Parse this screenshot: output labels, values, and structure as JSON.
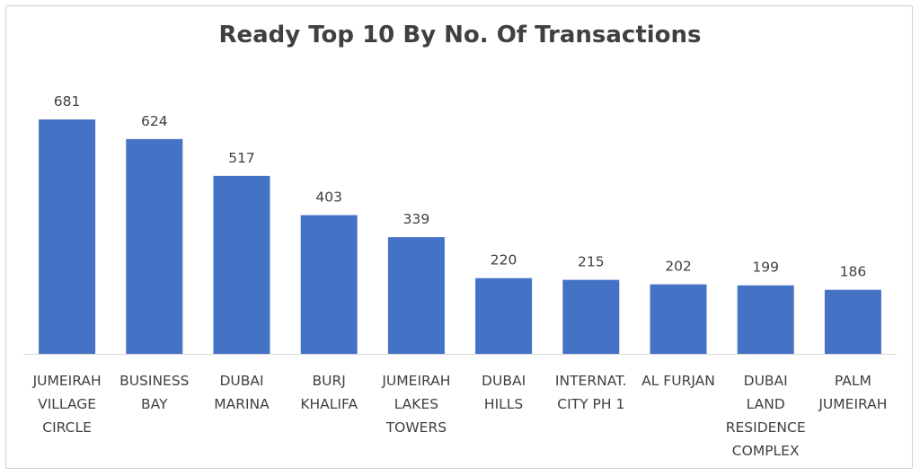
{
  "chart_data": {
    "type": "bar",
    "title": "Ready Top 10 By No. Of Transactions",
    "xlabel": "",
    "ylabel": "",
    "ylim": [
      0,
      681
    ],
    "grid": false,
    "bar_color": "#4472C4",
    "categories": [
      [
        "JUMEIRAH",
        "VILLAGE",
        "CIRCLE"
      ],
      [
        "BUSINESS",
        "BAY"
      ],
      [
        "DUBAI",
        "MARINA"
      ],
      [
        "BURJ",
        "KHALIFA"
      ],
      [
        "JUMEIRAH",
        "LAKES",
        "TOWERS"
      ],
      [
        "DUBAI",
        "HILLS"
      ],
      [
        "INTERNAT.",
        "CITY PH 1"
      ],
      [
        "AL FURJAN"
      ],
      [
        "DUBAI",
        "LAND",
        "RESIDENCE",
        "COMPLEX"
      ],
      [
        "PALM",
        "JUMEIRAH"
      ]
    ],
    "values": [
      681,
      624,
      517,
      403,
      339,
      220,
      215,
      202,
      199,
      186
    ]
  }
}
